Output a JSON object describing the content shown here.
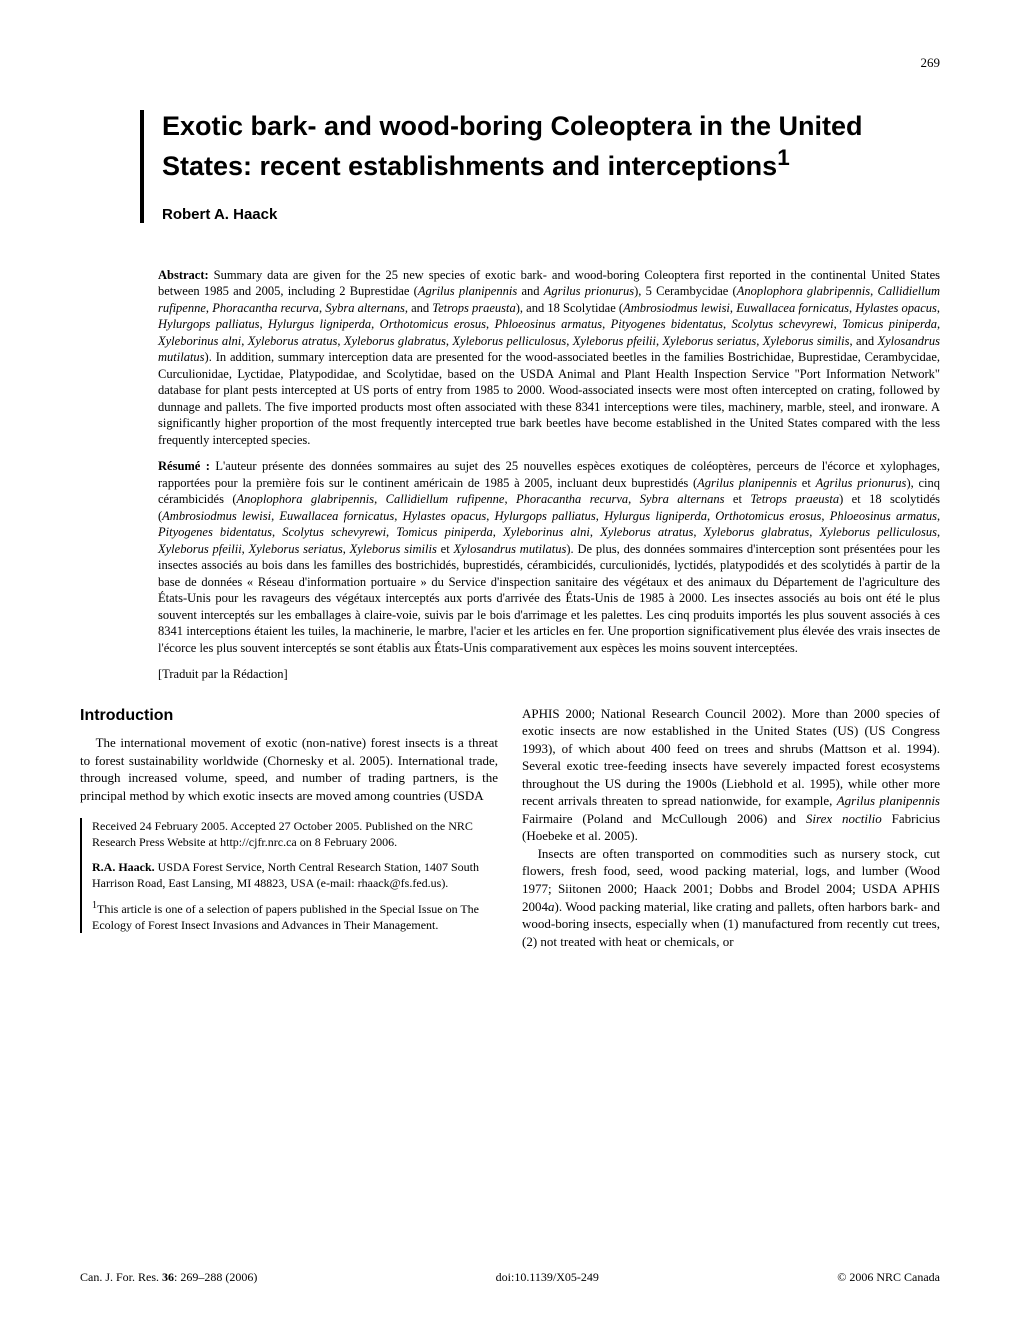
{
  "page_number": "269",
  "title": "Exotic bark- and wood-boring Coleoptera in the United States: recent establishments and interceptions",
  "title_footnote_marker": "1",
  "author": "Robert A. Haack",
  "abstract_label": "Abstract:",
  "abstract_en": "Summary data are given for the 25 new species of exotic bark- and wood-boring Coleoptera first reported in the continental United States between 1985 and 2005, including 2 Buprestidae (<i>Agrilus planipennis</i> and <i>Agrilus prionurus</i>), 5 Cerambycidae (<i>Anoplophora glabripennis</i>, <i>Callidiellum rufipenne</i>, <i>Phoracantha recurva</i>, <i>Sybra alternans</i>, and <i>Tetrops praeusta</i>), and 18 Scolytidae (<i>Ambrosiodmus lewisi</i>, <i>Euwallacea fornicatus</i>, <i>Hylastes opacus</i>, <i>Hylurgops palliatus</i>, <i>Hylurgus ligniperda</i>, <i>Orthotomicus erosus</i>, <i>Phloeosinus armatus</i>, <i>Pityogenes bidentatus</i>, <i>Scolytus schevyrewi</i>, <i>Tomicus piniperda</i>, <i>Xyleborinus alni</i>, <i>Xyleborus atratus</i>, <i>Xyleborus glabratus</i>, <i>Xyleborus pelliculosus</i>, <i>Xyleborus pfeilii</i>, <i>Xyleborus seriatus</i>, <i>Xyleborus similis</i>, and <i>Xylosandrus mutilatus</i>). In addition, summary interception data are presented for the wood-associated beetles in the families Bostrichidae, Buprestidae, Cerambycidae, Curculionidae, Lyctidae, Platypodidae, and Scolytidae, based on the USDA Animal and Plant Health Inspection Service \"Port Information Network\" database for plant pests intercepted at US ports of entry from 1985 to 2000. Wood-associated insects were most often intercepted on crating, followed by dunnage and pallets. The five imported products most often associated with these 8341 interceptions were tiles, machinery, marble, steel, and ironware. A significantly higher proportion of the most frequently intercepted true bark beetles have become established in the United States compared with the less frequently intercepted species.",
  "resume_label": "Résumé :",
  "abstract_fr": "L'auteur présente des données sommaires au sujet des 25 nouvelles espèces exotiques de coléoptères, perceurs de l'écorce et xylophages, rapportées pour la première fois sur le continent américain de 1985 à 2005, incluant deux buprestidés (<i>Agrilus planipennis</i> et <i>Agrilus prionurus</i>), cinq cérambicidés (<i>Anoplophora glabripennis</i>, <i>Callidiellum rufipenne</i>, <i>Phoracantha recurva</i>, <i>Sybra alternans</i> et <i>Tetrops praeusta</i>) et 18 scolytidés (<i>Ambrosiodmus lewisi</i>, <i>Euwallacea fornicatus</i>, <i>Hylastes opacus</i>, <i>Hylurgops palliatus</i>, <i>Hylurgus ligniperda</i>, <i>Orthotomicus erosus</i>, <i>Phloeosinus armatus</i>, <i>Pityogenes bidentatus</i>, <i>Scolytus schevyrewi</i>, <i>Tomicus piniperda</i>, <i>Xyleborinus alni</i>, <i>Xyleborus atratus</i>, <i>Xyleborus glabratus</i>, <i>Xyleborus pelliculosus</i>, <i>Xyleborus pfeilii</i>, <i>Xyleborus seriatus</i>, <i>Xyleborus similis</i> et <i>Xylosandrus mutilatus</i>). De plus, des données sommaires d'interception sont présentées pour les insectes associés au bois dans les familles des bostrichidés, buprestidés, cérambicidés, curculionidés, lyctidés, platypodidés et des scolytidés à partir de la base de données « Réseau d'information portuaire » du Service d'inspection sanitaire des végétaux et des animaux du Département de l'agriculture des États-Unis pour les ravageurs des végétaux interceptés aux ports d'arrivée des États-Unis de 1985 à 2000. Les insectes associés au bois ont été le plus souvent interceptés sur les emballages à claire-voie, suivis par le bois d'arrimage et les palettes. Les cinq produits importés les plus souvent associés à ces 8341 interceptions étaient les tuiles, la machinerie, le marbre, l'acier et les articles en fer. Une proportion significativement plus élevée des vrais insectes de l'écorce les plus souvent interceptés se sont établis aux États-Unis comparativement aux espèces les moins souvent interceptées.",
  "translator_note": "[Traduit par la Rédaction]",
  "intro_heading": "Introduction",
  "intro_p1": "The international movement of exotic (non-native) forest insects is a threat to forest sustainability worldwide (Chornesky et al. 2005). International trade, through increased volume, speed, and number of trading partners, is the principal method by which exotic insects are moved among countries (USDA",
  "col2_p1": "APHIS 2000; National Research Council 2002). More than 2000 species of exotic insects are now established in the United States (US) (US Congress 1993), of which about 400 feed on trees and shrubs (Mattson et al. 1994). Several exotic tree-feeding insects have severely impacted forest ecosystems throughout the US during the 1900s (Liebhold et al. 1995), while other more recent arrivals threaten to spread nationwide, for example, <i>Agrilus planipennis</i> Fairmaire (Poland and McCullough 2006) and <i>Sirex noctilio</i> Fabricius (Hoebeke et al. 2005).",
  "col2_p2": "Insects are often transported on commodities such as nursery stock, cut flowers, fresh food, seed, wood packing material, logs, and lumber (Wood 1977; Siitonen 2000; Haack 2001; Dobbs and Brodel 2004; USDA APHIS 2004<i>a</i>). Wood packing material, like crating and pallets, often harbors bark- and wood-boring insects, especially when (1) manufactured from recently cut trees, (2) not treated with heat or chemicals, or",
  "received": "Received 24 February 2005. Accepted 27 October 2005. Published on the NRC Research Press Website at http://cjfr.nrc.ca on 8 February 2006.",
  "author_info_name": "R.A. Haack.",
  "author_info": " USDA Forest Service, North Central Research Station, 1407 South Harrison Road, East Lansing, MI 48823, USA (e-mail: rhaack@fs.fed.us).",
  "footnote_marker": "1",
  "footnote_text": "This article is one of a selection of papers published in the Special Issue on The Ecology of Forest Insect Invasions and Advances in Their Management.",
  "footer_left_journal": "Can. J. For. Res. ",
  "footer_left_vol": "36",
  "footer_left_pages": ": 269–288 (2006)",
  "footer_center": "doi:10.1139/X05-249",
  "footer_right": "© 2006 NRC Canada"
}
